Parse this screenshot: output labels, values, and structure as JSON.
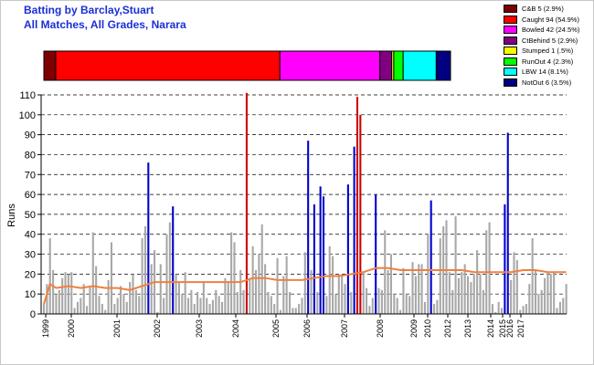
{
  "title_line1": "Batting by Barclay,Stuart",
  "title_line2": "All Matches, All Grades, Narara",
  "legend": [
    {
      "label": "C&B 5 (2.9%)",
      "color": "#7f0000"
    },
    {
      "label": "Caught 94 (54.9%)",
      "color": "#ff0000"
    },
    {
      "label": "Bowled 42 (24.5%)",
      "color": "#ff00ff"
    },
    {
      "label": "CtBehind 5 (2.9%)",
      "color": "#800080"
    },
    {
      "label": "Stumped 1 (.5%)",
      "color": "#ffff00"
    },
    {
      "label": "RunOut 4 (2.3%)",
      "color": "#00ff00"
    },
    {
      "label": "LBW 14 (8.1%)",
      "color": "#00ffff"
    },
    {
      "label": "NotOut 6 (3.5%)",
      "color": "#000080"
    }
  ],
  "chart_data": {
    "type": "bar",
    "ylabel": "Runs",
    "ylim": [
      0,
      110
    ],
    "yticks": [
      0,
      10,
      20,
      30,
      40,
      50,
      60,
      70,
      80,
      90,
      100,
      110
    ],
    "grid": "horizontal dashed",
    "xticks": [
      "1999",
      "2000",
      "2001",
      "2002",
      "2003",
      "2004",
      "2005",
      "2006",
      "2007",
      "2008",
      "2009",
      "2010",
      "2012",
      "2013",
      "2014",
      "2015",
      "2016",
      "2017"
    ],
    "dismissal_share_bar": [
      {
        "type": "C&B",
        "percent": 2.9,
        "color": "#7f0000"
      },
      {
        "type": "Caught",
        "percent": 54.9,
        "color": "#ff0000"
      },
      {
        "type": "Bowled",
        "percent": 24.5,
        "color": "#ff00ff"
      },
      {
        "type": "CtBehind",
        "percent": 2.9,
        "color": "#800080"
      },
      {
        "type": "Stumped",
        "percent": 0.5,
        "color": "#ffff00"
      },
      {
        "type": "RunOut",
        "percent": 2.3,
        "color": "#00ff00"
      },
      {
        "type": "LBW",
        "percent": 8.1,
        "color": "#00ffff"
      },
      {
        "type": "NotOut",
        "percent": 3.5,
        "color": "#000080"
      }
    ],
    "innings_count": 171,
    "gray_innings": [
      5,
      15,
      38,
      22,
      10,
      12,
      18,
      21,
      20,
      21,
      3,
      6,
      8,
      15,
      4,
      14,
      41,
      24,
      9,
      5,
      2,
      17,
      36,
      5,
      8,
      14,
      10,
      6,
      16,
      20,
      12,
      9,
      38,
      44,
      27,
      25,
      32,
      1,
      25,
      8,
      40,
      46,
      12,
      20,
      16,
      10,
      21,
      8,
      12,
      5,
      11,
      8,
      16,
      8,
      5,
      7,
      12,
      9,
      6,
      18,
      16,
      41,
      36,
      11,
      22,
      12,
      3,
      18,
      34,
      22,
      30,
      45,
      25,
      11,
      9,
      5,
      28,
      2,
      19,
      29,
      11,
      3,
      3,
      5,
      8,
      31,
      37,
      22,
      28,
      11,
      14,
      9,
      9,
      34,
      29,
      10,
      20,
      19,
      15,
      33,
      11,
      6,
      25,
      19,
      21,
      13,
      4,
      8,
      25,
      13,
      12,
      42,
      22,
      30,
      10,
      8,
      2,
      23,
      10,
      9,
      26,
      19,
      25,
      25,
      6,
      40,
      42,
      5,
      7,
      38,
      44,
      47,
      21,
      12,
      49,
      18,
      21,
      25,
      19,
      16,
      20,
      32,
      20,
      12,
      42,
      46,
      5,
      1,
      6,
      3,
      8,
      6,
      17,
      31,
      27,
      2,
      4
    ],
    "highlighted_innings": [
      {
        "x": 34,
        "value": 76,
        "color": "#0000cc"
      },
      {
        "x": 42,
        "value": 54,
        "color": "#0000cc"
      },
      {
        "x": 66,
        "value": 111,
        "color": "#cc0000"
      },
      {
        "x": 86,
        "value": 87,
        "color": "#0000cc"
      },
      {
        "x": 88,
        "value": 55,
        "color": "#0000cc"
      },
      {
        "x": 90,
        "value": 64,
        "color": "#0000cc"
      },
      {
        "x": 91,
        "value": 59,
        "color": "#0000cc"
      },
      {
        "x": 99,
        "value": 65,
        "color": "#0000cc"
      },
      {
        "x": 101,
        "value": 84,
        "color": "#0000cc"
      },
      {
        "x": 102,
        "value": 109,
        "color": "#cc0000"
      },
      {
        "x": 103,
        "value": 100,
        "color": "#cc0000"
      },
      {
        "x": 108,
        "value": 60,
        "color": "#0000cc"
      },
      {
        "x": 126,
        "value": 57,
        "color": "#0000cc"
      },
      {
        "x": 150,
        "value": 55,
        "color": "#0000cc"
      },
      {
        "x": 151,
        "value": 91,
        "color": "#0000cc"
      }
    ],
    "average_line": [
      [
        0,
        5
      ],
      [
        2,
        15
      ],
      [
        4,
        13
      ],
      [
        8,
        14
      ],
      [
        12,
        13
      ],
      [
        16,
        14
      ],
      [
        20,
        13
      ],
      [
        24,
        13
      ],
      [
        28,
        12
      ],
      [
        32,
        14
      ],
      [
        36,
        16
      ],
      [
        40,
        16
      ],
      [
        44,
        16
      ],
      [
        48,
        16
      ],
      [
        52,
        16
      ],
      [
        56,
        16
      ],
      [
        60,
        16
      ],
      [
        64,
        16
      ],
      [
        68,
        18
      ],
      [
        72,
        18
      ],
      [
        76,
        17
      ],
      [
        80,
        17
      ],
      [
        84,
        17
      ],
      [
        88,
        18
      ],
      [
        92,
        19
      ],
      [
        96,
        19
      ],
      [
        100,
        20
      ],
      [
        104,
        21
      ],
      [
        108,
        23
      ],
      [
        112,
        23
      ],
      [
        116,
        22
      ],
      [
        120,
        22
      ],
      [
        124,
        22
      ],
      [
        128,
        22
      ],
      [
        132,
        22
      ],
      [
        136,
        22
      ],
      [
        140,
        21
      ],
      [
        144,
        21
      ],
      [
        148,
        21
      ],
      [
        152,
        21
      ],
      [
        156,
        22
      ],
      [
        160,
        22
      ],
      [
        164,
        21
      ],
      [
        168,
        21
      ],
      [
        170,
        21
      ]
    ],
    "average_line_color": "#f08040"
  }
}
